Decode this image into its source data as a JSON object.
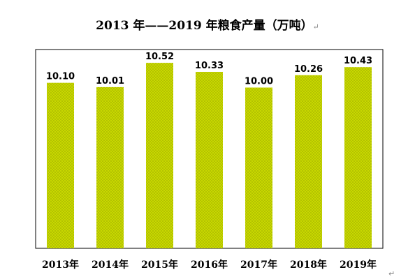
{
  "title": "2013 年——2019 年粮食产量（万吨）",
  "paragraph_mark": "↵",
  "chart_data": {
    "type": "bar",
    "title": "2013 年——2019 年粮食产量（万吨）",
    "categories": [
      "2013年",
      "2014年",
      "2015年",
      "2016年",
      "2017年",
      "2018年",
      "2019年"
    ],
    "values": [
      10.1,
      10.01,
      10.52,
      10.33,
      10.0,
      10.26,
      10.43
    ],
    "value_labels": [
      "10.10",
      "10.01",
      "10.52",
      "10.33",
      "10.00",
      "10.26",
      "10.43"
    ],
    "xlabel": "",
    "ylabel": "",
    "ylim": [
      6.62,
      10.8
    ],
    "grid": false,
    "legend": "none",
    "bar_color": "#c8d800",
    "bar_pattern_color": "#9aa800"
  }
}
